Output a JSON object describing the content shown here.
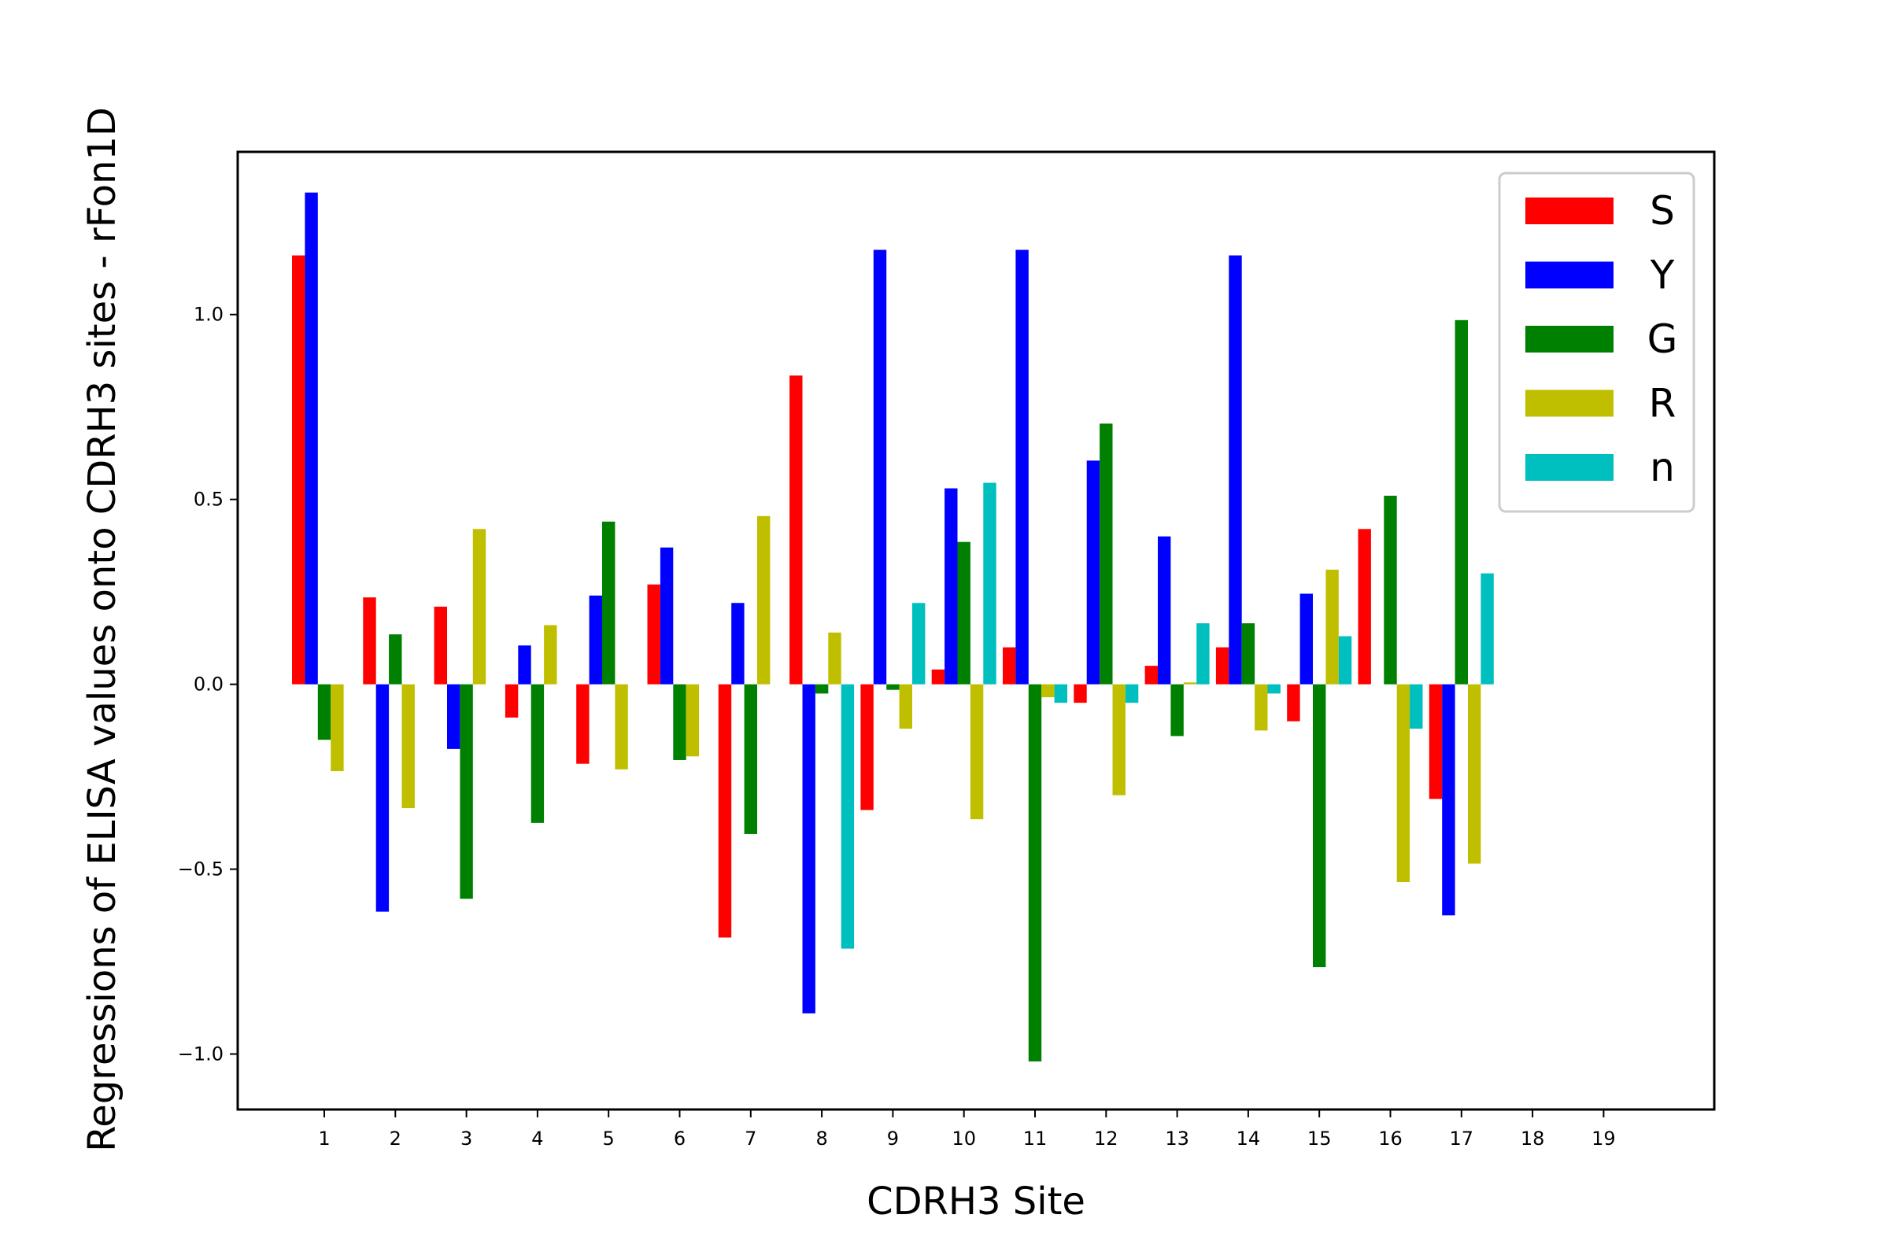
{
  "chart_data": {
    "type": "bar",
    "title": "",
    "xlabel": "CDRH3 Site",
    "ylabel": "Regressions of ELISA values onto CDRH3 sites - rFon1D",
    "ylim": [
      -1.15,
      1.44
    ],
    "grid": false,
    "legend_position": "top-right",
    "x_ticks": [
      "1",
      "2",
      "3",
      "4",
      "5",
      "6",
      "7",
      "8",
      "9",
      "10",
      "11",
      "12",
      "13",
      "14",
      "15",
      "16",
      "17",
      "18",
      "19"
    ],
    "y_ticks": [
      "−1.0",
      "−0.5",
      "0.0",
      "0.5",
      "1.0"
    ],
    "y_tick_values": [
      -1.0,
      -0.5,
      0.0,
      0.5,
      1.0
    ],
    "categories": [
      1,
      2,
      3,
      4,
      5,
      6,
      7,
      8,
      9,
      10,
      11,
      12,
      13,
      14,
      15,
      16,
      17
    ],
    "series": [
      {
        "name": "S",
        "color": "#ff0000",
        "values": [
          1.16,
          0.235,
          0.21,
          -0.09,
          -0.215,
          0.27,
          -0.685,
          0.835,
          -0.34,
          0.04,
          0.1,
          -0.05,
          0.05,
          0.1,
          -0.1,
          0.42,
          -0.31
        ]
      },
      {
        "name": "Y",
        "color": "#0000ff",
        "values": [
          1.33,
          -0.615,
          -0.175,
          0.105,
          0.24,
          0.37,
          0.22,
          -0.89,
          1.175,
          0.53,
          1.175,
          0.605,
          0.4,
          1.16,
          0.245,
          0.0,
          -0.625
        ]
      },
      {
        "name": "G",
        "color": "#008000",
        "values": [
          -0.15,
          0.135,
          -0.58,
          -0.375,
          0.44,
          -0.205,
          -0.405,
          -0.025,
          -0.015,
          0.385,
          -1.02,
          0.705,
          -0.14,
          0.165,
          -0.765,
          0.51,
          0.985
        ]
      },
      {
        "name": "R",
        "color": "#bfbf00",
        "values": [
          -0.235,
          -0.335,
          0.42,
          0.16,
          -0.23,
          -0.195,
          0.455,
          0.14,
          -0.12,
          -0.365,
          -0.035,
          -0.3,
          0.005,
          -0.125,
          0.31,
          -0.535,
          -0.485
        ]
      },
      {
        "name": "n",
        "color": "#00bfbf",
        "values": [
          0.0,
          0.0,
          0.0,
          0.0,
          0.0,
          0.0,
          0.0,
          -0.715,
          0.22,
          0.545,
          -0.05,
          -0.05,
          0.165,
          -0.025,
          0.13,
          -0.12,
          0.3
        ]
      }
    ]
  }
}
